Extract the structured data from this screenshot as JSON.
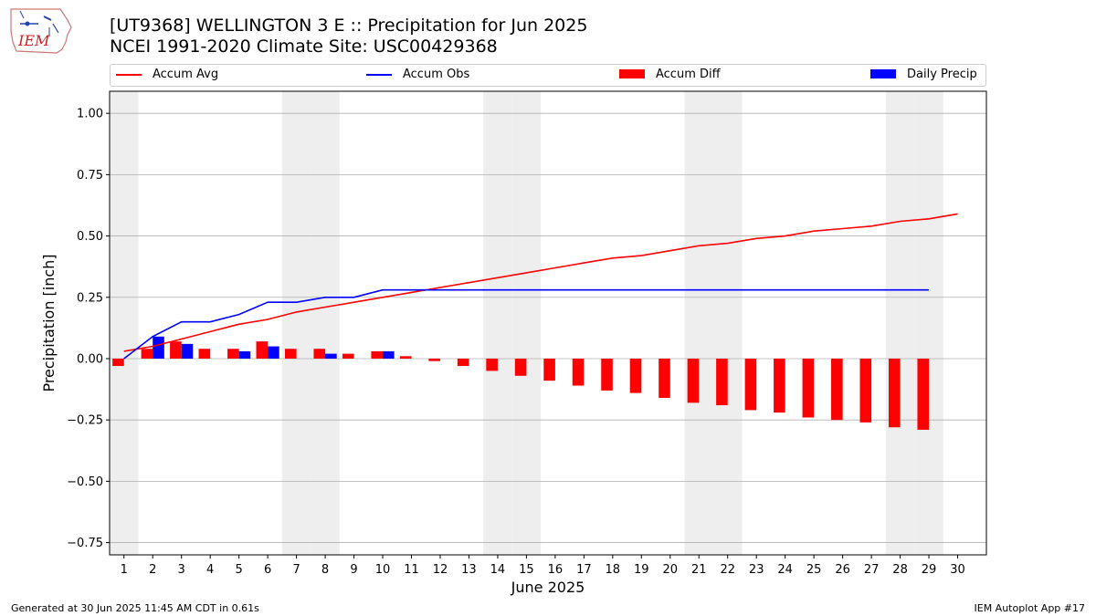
{
  "header": {
    "title_line1": "[UT9368] WELLINGTON 3 E :: Precipitation for Jun 2025",
    "title_line2": "NCEI 1991-2020 Climate Site: USC00429368"
  },
  "logo": {
    "text": "IEM",
    "icon": "iem-iowa-logo"
  },
  "footer": {
    "left": "Generated at 30 Jun 2025 11:45 AM CDT in 0.61s",
    "right": "IEM Autoplot App #17"
  },
  "colors": {
    "accum_avg": "#ff0000",
    "accum_obs": "#0000ff",
    "accum_diff": "#ff0000",
    "daily_precip": "#0000ff",
    "weekend_shade": "#eeeeee",
    "grid": "#b0b0b0"
  },
  "chart_data": {
    "type": "bar",
    "xlabel": "June 2025",
    "ylabel": "Precipitation [inch]",
    "ylim": [
      -0.8,
      1.09
    ],
    "yticks": [
      -0.75,
      -0.5,
      -0.25,
      0.0,
      0.25,
      0.5,
      0.75,
      1.0
    ],
    "ytick_labels": [
      "−0.75",
      "−0.50",
      "−0.25",
      "0.00",
      "0.25",
      "0.50",
      "0.75",
      "1.00"
    ],
    "grid": "horizontal",
    "legend_position": "top, above plot",
    "x": [
      1,
      2,
      3,
      4,
      5,
      6,
      7,
      8,
      9,
      10,
      11,
      12,
      13,
      14,
      15,
      16,
      17,
      18,
      19,
      20,
      21,
      22,
      23,
      24,
      25,
      26,
      27,
      28,
      29,
      30
    ],
    "weekend_days": [
      1,
      7,
      8,
      14,
      15,
      21,
      22,
      28,
      29
    ],
    "series": [
      {
        "name": "Accum Avg",
        "type": "line",
        "values": [
          0.03,
          0.05,
          0.08,
          0.11,
          0.14,
          0.16,
          0.19,
          0.21,
          0.23,
          0.25,
          0.27,
          0.29,
          0.31,
          0.33,
          0.35,
          0.37,
          0.39,
          0.41,
          0.42,
          0.44,
          0.46,
          0.47,
          0.49,
          0.5,
          0.52,
          0.53,
          0.54,
          0.56,
          0.57,
          0.59
        ]
      },
      {
        "name": "Accum Obs",
        "type": "line",
        "values": [
          0.0,
          0.09,
          0.15,
          0.15,
          0.18,
          0.23,
          0.23,
          0.25,
          0.25,
          0.28,
          0.28,
          0.28,
          0.28,
          0.28,
          0.28,
          0.28,
          0.28,
          0.28,
          0.28,
          0.28,
          0.28,
          0.28,
          0.28,
          0.28,
          0.28,
          0.28,
          0.28,
          0.28,
          0.28,
          null
        ]
      },
      {
        "name": "Accum Diff",
        "type": "bar",
        "values": [
          -0.03,
          0.04,
          0.07,
          0.04,
          0.04,
          0.07,
          0.04,
          0.04,
          0.02,
          0.03,
          0.01,
          -0.01,
          -0.03,
          -0.05,
          -0.07,
          -0.09,
          -0.11,
          -0.13,
          -0.14,
          -0.16,
          -0.18,
          -0.19,
          -0.21,
          -0.22,
          -0.24,
          -0.25,
          -0.26,
          -0.28,
          -0.29,
          null
        ]
      },
      {
        "name": "Daily Precip",
        "type": "bar",
        "values": [
          0.0,
          0.09,
          0.06,
          0.0,
          0.03,
          0.05,
          0.0,
          0.02,
          0.0,
          0.03,
          0.0,
          0.0,
          0.0,
          0.0,
          0.0,
          0.0,
          0.0,
          0.0,
          0.0,
          0.0,
          0.0,
          0.0,
          0.0,
          0.0,
          0.0,
          0.0,
          0.0,
          0.0,
          0.0,
          null
        ]
      }
    ]
  }
}
